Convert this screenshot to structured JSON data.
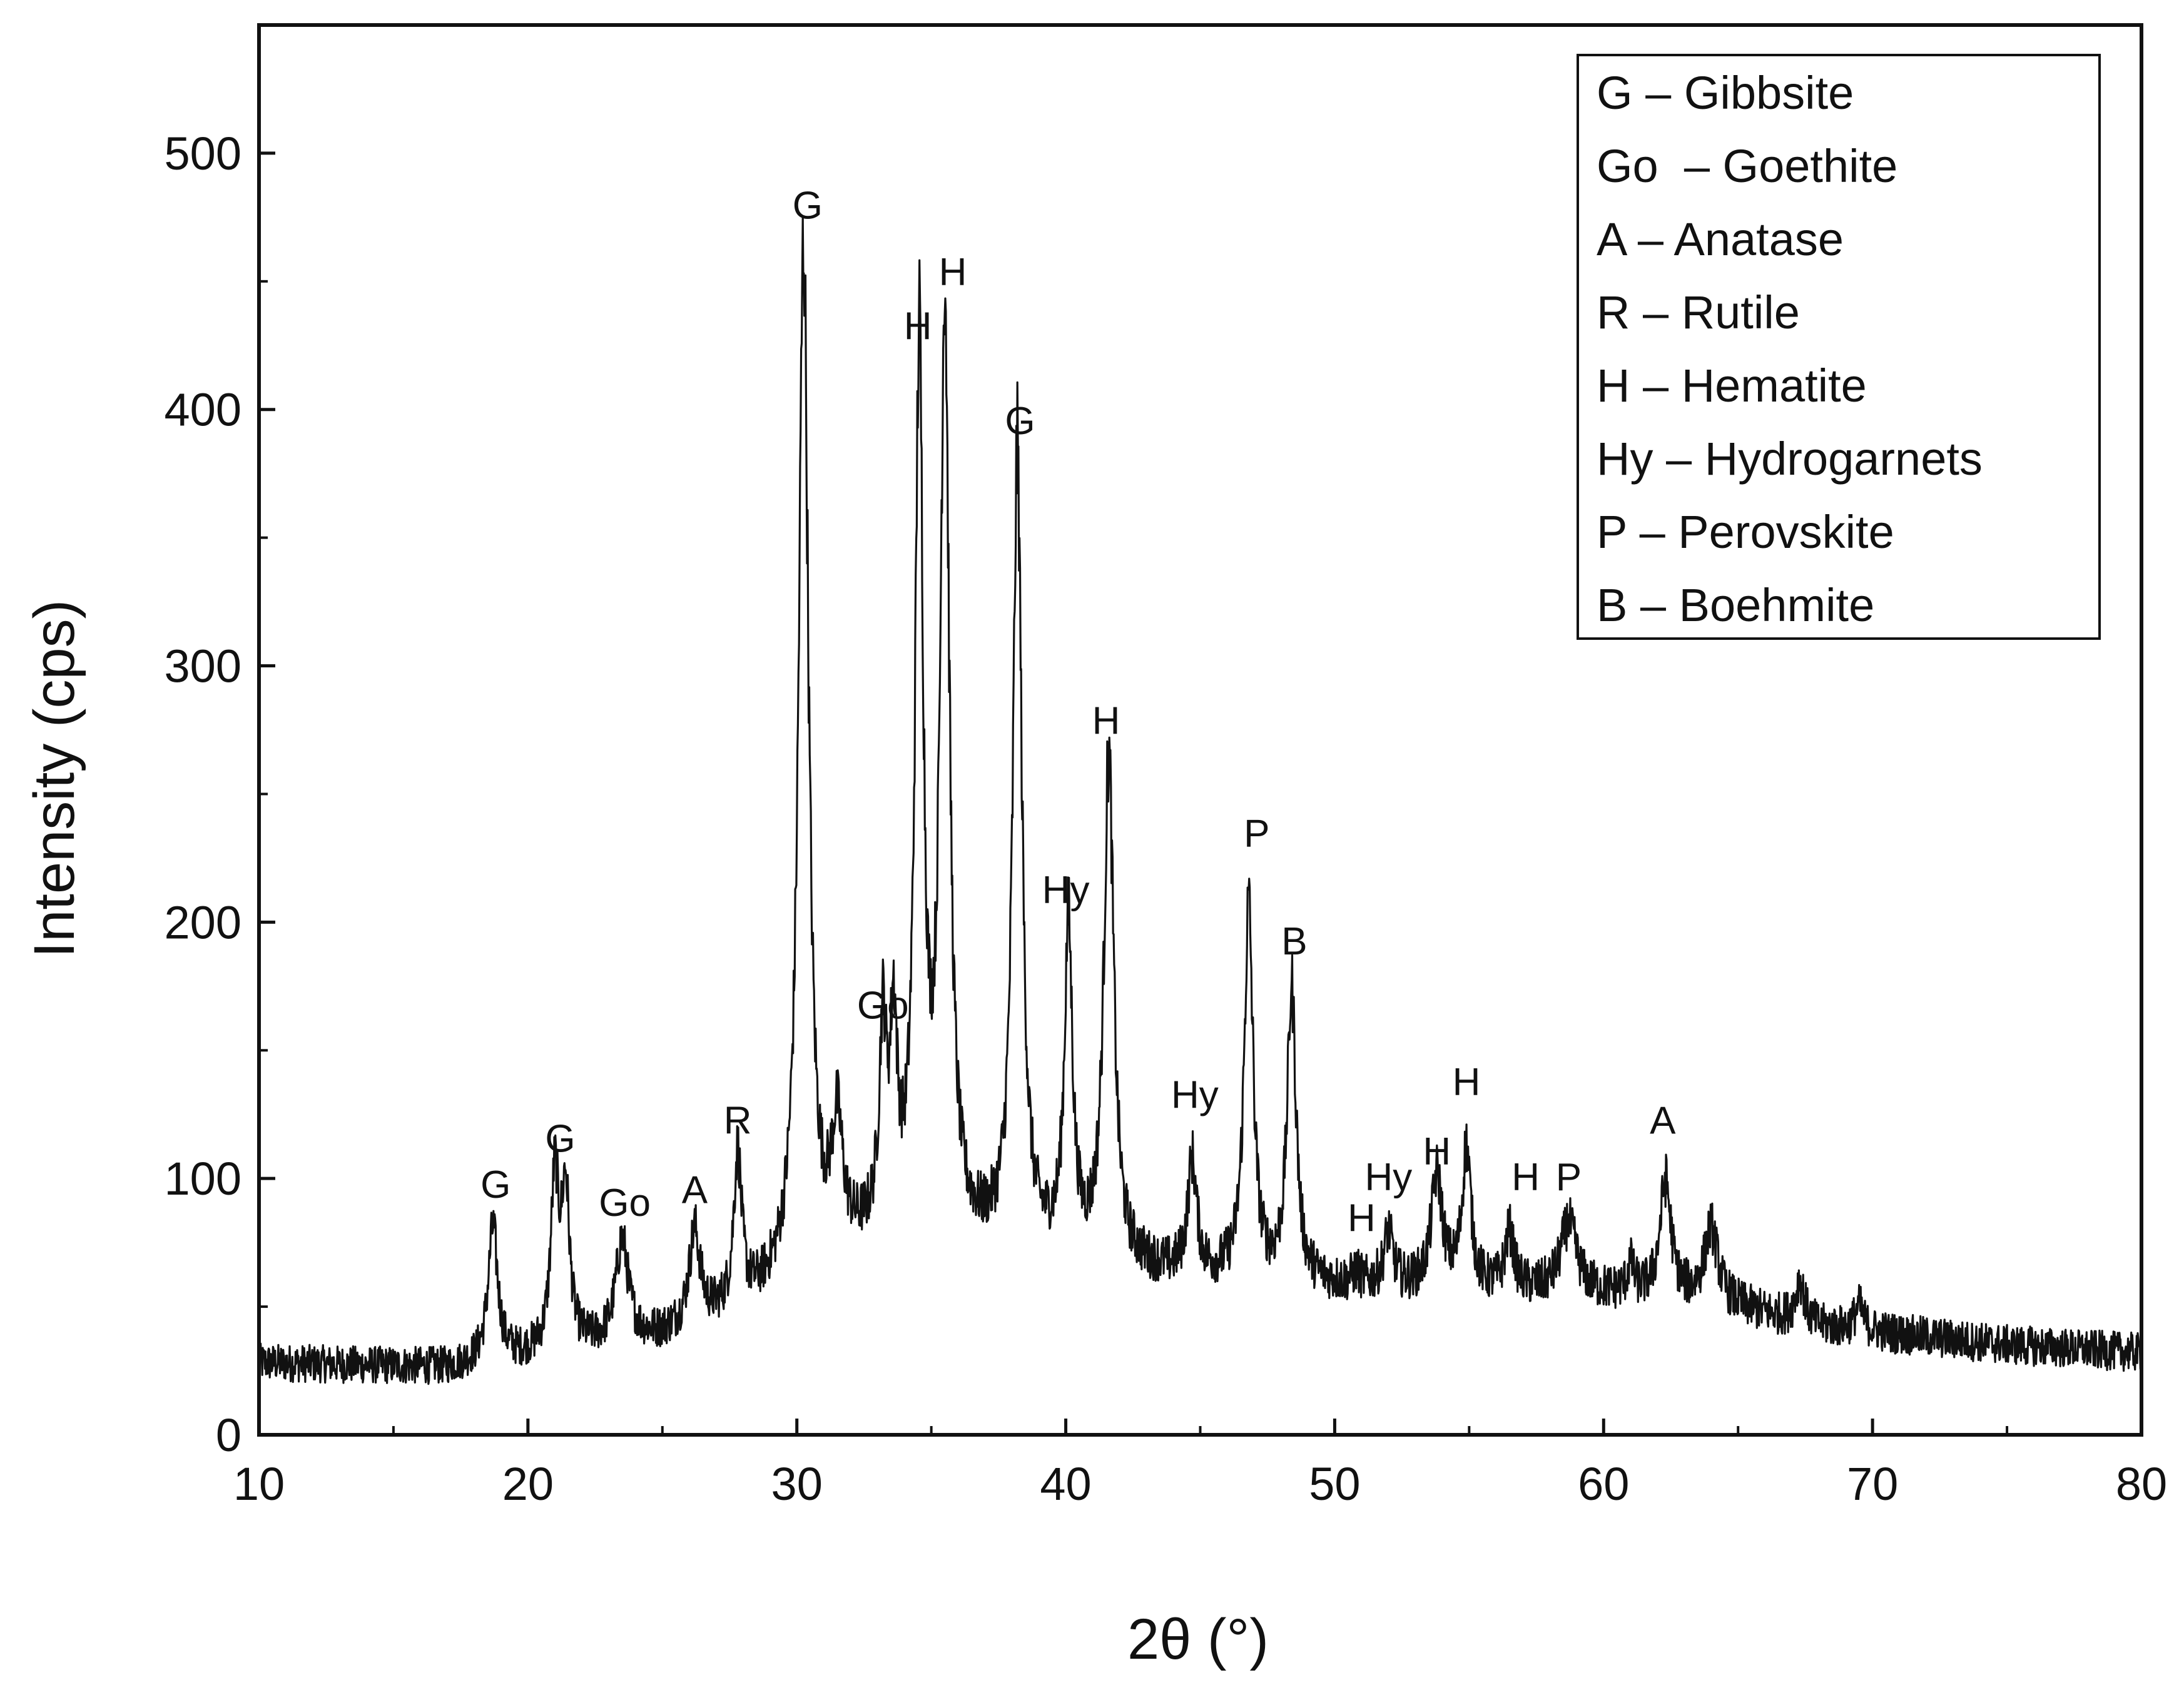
{
  "chart_data": {
    "type": "line",
    "title": "",
    "xlabel": "2θ (°)",
    "ylabel": "Intensity (cps)",
    "xlim": [
      10,
      80
    ],
    "ylim": [
      0,
      550
    ],
    "x_ticks": [
      10,
      20,
      30,
      40,
      50,
      60,
      70,
      80
    ],
    "y_ticks": [
      0,
      100,
      200,
      300,
      400,
      500
    ],
    "grid": false,
    "legend_position": "top-right",
    "legend": [
      "G – Gibbsite",
      "Go  – Goethite",
      "A – Anatase",
      "R – Rutile",
      "H – Hematite",
      "Hy – Hydrogarnets",
      "P – Perovskite",
      "B – Boehmite"
    ],
    "series_color": "#111111",
    "background_level": [
      [
        10,
        28
      ],
      [
        17,
        26
      ],
      [
        25,
        38
      ],
      [
        28,
        48
      ],
      [
        30,
        62
      ],
      [
        33,
        75
      ],
      [
        36,
        75
      ],
      [
        40,
        70
      ],
      [
        44,
        62
      ],
      [
        50,
        58
      ],
      [
        56,
        56
      ],
      [
        60,
        55
      ],
      [
        64,
        52
      ],
      [
        68,
        42
      ],
      [
        75,
        35
      ],
      [
        80,
        32
      ]
    ],
    "peaks": [
      {
        "x": 18.7,
        "y": 80,
        "w": 0.22
      },
      {
        "x": 21.0,
        "y": 97,
        "w": 0.18
      },
      {
        "x": 21.4,
        "y": 92,
        "w": 0.18
      },
      {
        "x": 23.5,
        "y": 75,
        "w": 0.28
      },
      {
        "x": 26.2,
        "y": 78,
        "w": 0.25
      },
      {
        "x": 27.8,
        "y": 107,
        "w": 0.18
      },
      {
        "x": 30.25,
        "y": 462,
        "w": 0.22
      },
      {
        "x": 31.5,
        "y": 115,
        "w": 0.25
      },
      {
        "x": 33.2,
        "y": 150,
        "w": 0.16
      },
      {
        "x": 33.6,
        "y": 150,
        "w": 0.16
      },
      {
        "x": 34.55,
        "y": 415,
        "w": 0.18
      },
      {
        "x": 35.5,
        "y": 438,
        "w": 0.2
      },
      {
        "x": 38.2,
        "y": 380,
        "w": 0.2
      },
      {
        "x": 40.1,
        "y": 195,
        "w": 0.18
      },
      {
        "x": 41.6,
        "y": 262,
        "w": 0.22
      },
      {
        "x": 44.7,
        "y": 105,
        "w": 0.2
      },
      {
        "x": 46.8,
        "y": 205,
        "w": 0.2
      },
      {
        "x": 48.4,
        "y": 172,
        "w": 0.2
      },
      {
        "x": 50.8,
        "y": 62,
        "w": 0.15
      },
      {
        "x": 52.0,
        "y": 78,
        "w": 0.2
      },
      {
        "x": 53.8,
        "y": 100,
        "w": 0.25
      },
      {
        "x": 54.9,
        "y": 110,
        "w": 0.2
      },
      {
        "x": 56.5,
        "y": 78,
        "w": 0.2
      },
      {
        "x": 58.7,
        "y": 82,
        "w": 0.35
      },
      {
        "x": 61.0,
        "y": 65,
        "w": 0.15
      },
      {
        "x": 62.3,
        "y": 98,
        "w": 0.25
      },
      {
        "x": 64.0,
        "y": 80,
        "w": 0.3
      },
      {
        "x": 67.3,
        "y": 60,
        "w": 0.2
      },
      {
        "x": 69.5,
        "y": 50,
        "w": 0.2
      }
    ],
    "peak_labels": [
      {
        "text": "G",
        "x": 18.8,
        "y": 90
      },
      {
        "text": "G",
        "x": 21.2,
        "y": 108
      },
      {
        "text": "Go",
        "x": 23.6,
        "y": 83
      },
      {
        "text": "A",
        "x": 26.2,
        "y": 88
      },
      {
        "text": "R",
        "x": 27.8,
        "y": 115
      },
      {
        "text": "G",
        "x": 30.4,
        "y": 472
      },
      {
        "text": "H",
        "x": 34.5,
        "y": 425
      },
      {
        "text": "H",
        "x": 35.8,
        "y": 446
      },
      {
        "text": "G",
        "x": 38.3,
        "y": 388
      },
      {
        "text": "Go",
        "x": 33.2,
        "y": 160
      },
      {
        "text": "Hy",
        "x": 40.0,
        "y": 205
      },
      {
        "text": "H",
        "x": 41.5,
        "y": 271
      },
      {
        "text": "Hy",
        "x": 44.8,
        "y": 125
      },
      {
        "text": "P",
        "x": 47.1,
        "y": 227
      },
      {
        "text": "B",
        "x": 48.5,
        "y": 185
      },
      {
        "text": "H",
        "x": 51.0,
        "y": 77
      },
      {
        "text": "Hy",
        "x": 52.0,
        "y": 93
      },
      {
        "text": "H",
        "x": 53.8,
        "y": 103
      },
      {
        "text": "H",
        "x": 54.9,
        "y": 130
      },
      {
        "text": "H",
        "x": 57.1,
        "y": 93
      },
      {
        "text": "P",
        "x": 58.7,
        "y": 93
      },
      {
        "text": "A",
        "x": 62.2,
        "y": 115
      }
    ]
  }
}
